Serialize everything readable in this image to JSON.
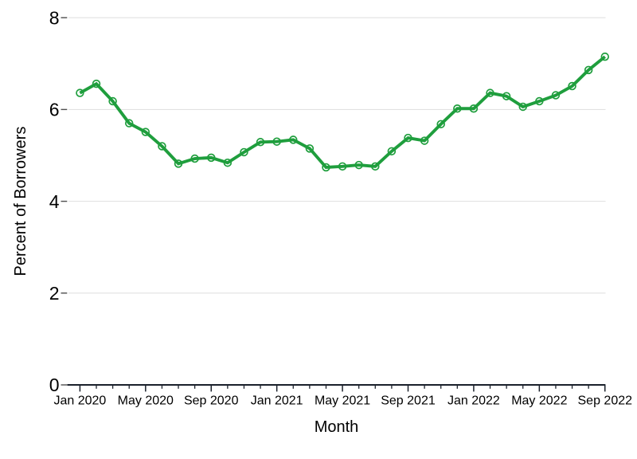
{
  "chart_data": {
    "type": "line",
    "title": "",
    "xlabel": "Month",
    "ylabel": "Percent of Borrowers",
    "x": [
      "Jan 2020",
      "Feb 2020",
      "Mar 2020",
      "Apr 2020",
      "May 2020",
      "Jun 2020",
      "Jul 2020",
      "Aug 2020",
      "Sep 2020",
      "Oct 2020",
      "Nov 2020",
      "Dec 2020",
      "Jan 2021",
      "Feb 2021",
      "Mar 2021",
      "Apr 2021",
      "May 2021",
      "Jun 2021",
      "Jul 2021",
      "Aug 2021",
      "Sep 2021",
      "Oct 2021",
      "Nov 2021",
      "Dec 2021",
      "Jan 2022",
      "Feb 2022",
      "Mar 2022",
      "Apr 2022",
      "May 2022",
      "Jun 2022",
      "Jul 2022",
      "Aug 2022",
      "Sep 2022"
    ],
    "series": [
      {
        "name": "Percent of Borrowers",
        "values": [
          6.36,
          6.56,
          6.18,
          5.7,
          5.51,
          5.2,
          4.82,
          4.93,
          4.95,
          4.84,
          5.07,
          5.29,
          5.3,
          5.34,
          5.15,
          4.74,
          4.76,
          4.79,
          4.76,
          5.09,
          5.38,
          5.32,
          5.68,
          6.02,
          6.02,
          6.36,
          6.29,
          6.06,
          6.18,
          6.31,
          6.51,
          6.86,
          7.15
        ]
      }
    ],
    "x_tick_labels": [
      "Jan 2020",
      "May 2020",
      "Sep 2020",
      "Jan 2021",
      "May 2021",
      "Sep 2021",
      "Jan 2022",
      "May 2022",
      "Sep 2022"
    ],
    "x_major_tick_every": 4,
    "y_ticks": [
      0,
      2,
      4,
      6,
      8
    ],
    "ylim": [
      0,
      8
    ],
    "grid": "horizontal",
    "legend": "none",
    "line_color": "#1f9e3d",
    "marker": "hollow-circle",
    "background_color": "#ffffff",
    "gridline_color": "#e2e2e2",
    "axis_color": "#1a202b",
    "y_tick_color": "#4f4f4f"
  }
}
